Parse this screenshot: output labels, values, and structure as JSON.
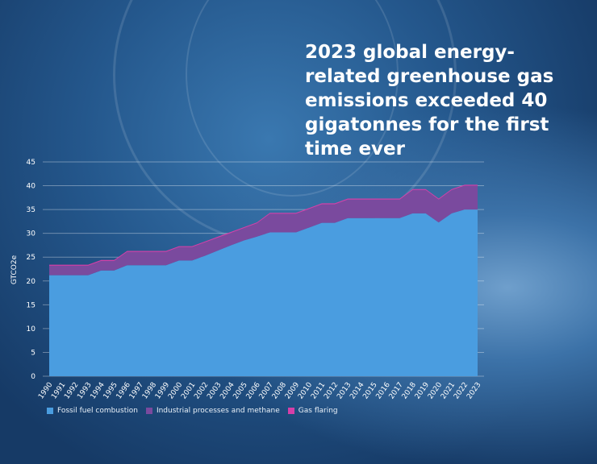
{
  "title": "2023 global energy-related greenhouse gas emissions exceeded 40 gigatonnes for the first time ever",
  "chart_data": {
    "type": "area",
    "stacked": true,
    "title": "2023 global energy-related greenhouse gas emissions exceeded 40 gigatonnes for the first time ever",
    "xlabel": "",
    "ylabel": "GTCO2e",
    "ylim": [
      0,
      45
    ],
    "yticks": [
      0,
      5,
      10,
      15,
      20,
      25,
      30,
      35,
      40,
      45
    ],
    "grid": true,
    "legend_position": "bottom-left",
    "x": [
      1990,
      1991,
      1992,
      1993,
      1994,
      1995,
      1996,
      1997,
      1998,
      1999,
      2000,
      2001,
      2002,
      2003,
      2004,
      2005,
      2006,
      2007,
      2008,
      2009,
      2010,
      2011,
      2012,
      2013,
      2014,
      2015,
      2016,
      2017,
      2018,
      2019,
      2020,
      2021,
      2022,
      2023
    ],
    "series": [
      {
        "name": "Fossil fuel combustion",
        "color": "#4a9de0",
        "values": [
          21.2,
          21.2,
          21.2,
          21.2,
          22.2,
          22.2,
          23.3,
          23.3,
          23.3,
          23.3,
          24.3,
          24.3,
          25.3,
          26.4,
          27.5,
          28.5,
          29.3,
          30.2,
          30.2,
          30.2,
          31.2,
          32.2,
          32.2,
          33.2,
          33.2,
          33.2,
          33.2,
          33.2,
          34.2,
          34.2,
          32.3,
          34.2,
          35.0,
          35.0
        ]
      },
      {
        "name": "Industrial processes and methane",
        "color": "#7a4a9e",
        "values": [
          2.0,
          2.0,
          2.0,
          2.0,
          2.0,
          2.0,
          2.8,
          2.8,
          2.8,
          2.8,
          2.8,
          2.8,
          2.8,
          2.7,
          2.6,
          2.6,
          2.8,
          3.9,
          3.9,
          3.9,
          3.9,
          3.9,
          3.9,
          3.9,
          3.9,
          3.9,
          3.9,
          3.9,
          4.9,
          4.9,
          4.8,
          4.9,
          5.0,
          5.0
        ]
      },
      {
        "name": "Gas flaring",
        "color": "#d63fa8",
        "values": [
          0.2,
          0.2,
          0.2,
          0.2,
          0.2,
          0.2,
          0.2,
          0.2,
          0.2,
          0.2,
          0.2,
          0.2,
          0.2,
          0.2,
          0.2,
          0.2,
          0.2,
          0.2,
          0.2,
          0.2,
          0.2,
          0.2,
          0.2,
          0.2,
          0.2,
          0.2,
          0.2,
          0.2,
          0.2,
          0.2,
          0.2,
          0.2,
          0.2,
          0.2
        ]
      }
    ]
  }
}
